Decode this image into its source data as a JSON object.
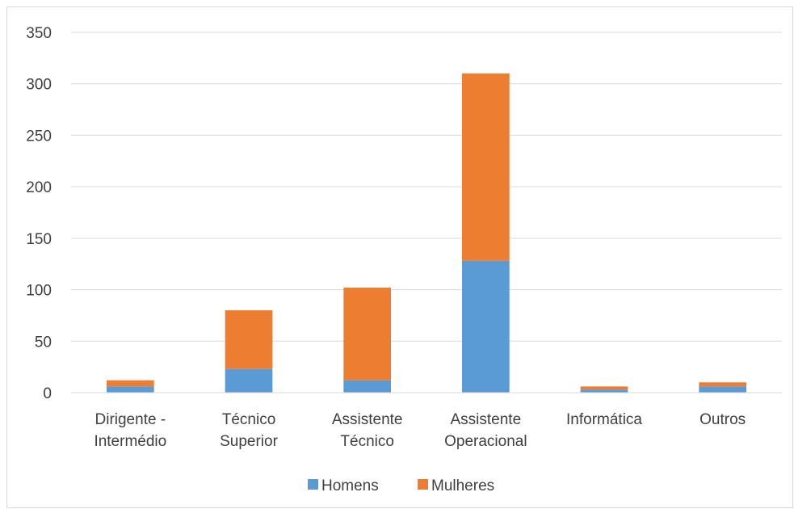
{
  "chart_data": {
    "type": "bar",
    "stacked": true,
    "categories": [
      [
        "Dirigente -",
        "Intermédio"
      ],
      [
        "Técnico",
        "Superior"
      ],
      [
        "Assistente",
        "Técnico"
      ],
      [
        "Assistente",
        "Operacional"
      ],
      [
        "Informática"
      ],
      [
        "Outros"
      ]
    ],
    "series": [
      {
        "name": "Homens",
        "color": "#5b9bd5",
        "values": [
          6,
          23,
          12,
          128,
          3,
          6
        ]
      },
      {
        "name": "Mulheres",
        "color": "#ed7d31",
        "values": [
          6,
          57,
          90,
          182,
          3,
          4
        ]
      }
    ],
    "yticks": [
      "0",
      "50",
      "100",
      "150",
      "200",
      "250",
      "300",
      "350"
    ],
    "ylim": [
      0,
      350
    ],
    "grid": true,
    "legend": "bottom",
    "title": "",
    "xlabel": "",
    "ylabel": ""
  }
}
